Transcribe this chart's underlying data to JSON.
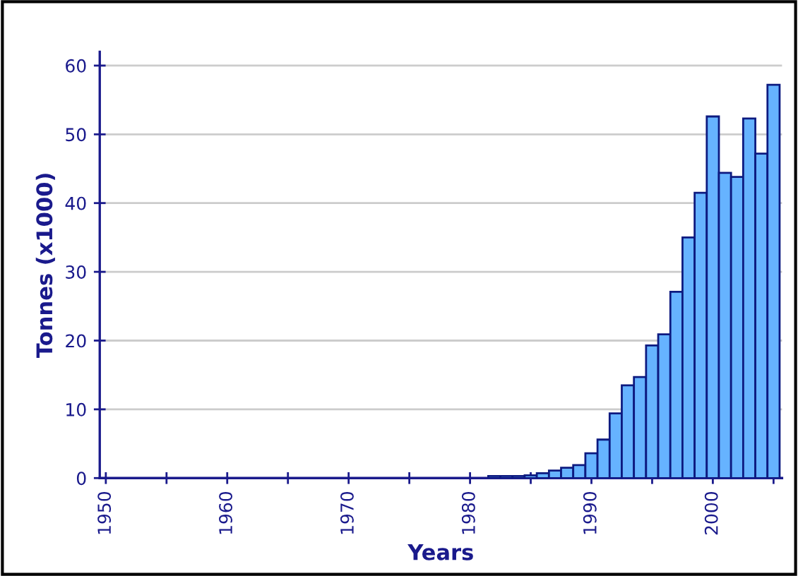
{
  "chart_data": {
    "type": "bar",
    "xlabel": "Years",
    "ylabel": "Tonnes (x1000)",
    "x": [
      1982,
      1983,
      1984,
      1985,
      1986,
      1987,
      1988,
      1989,
      1990,
      1991,
      1992,
      1993,
      1994,
      1995,
      1996,
      1997,
      1998,
      1999,
      2000,
      2001,
      2002,
      2003,
      2004,
      2005
    ],
    "series": [
      {
        "color": "#66b3ff",
        "values": [
          0.3,
          0.3,
          0.3,
          0.4,
          0.7,
          1.1,
          1.5,
          1.9,
          3.6,
          5.6,
          9.4,
          13.5,
          14.7,
          19.3,
          20.9,
          27.1,
          35.0,
          41.5,
          52.6,
          44.4,
          43.8,
          52.3,
          47.2,
          57.2
        ]
      }
    ],
    "xlim": [
      1949.5,
      2005.7
    ],
    "xticks": [
      1950,
      {
        "value": 1955,
        "label": null
      },
      1960,
      {
        "value": 1965,
        "label": null
      },
      1970,
      {
        "value": 1975,
        "label": null
      },
      1980,
      {
        "value": 1985,
        "label": null
      },
      1990,
      {
        "value": 1995,
        "label": null
      },
      2000,
      {
        "value": 2005,
        "label": null
      }
    ],
    "ylim": [
      0,
      62
    ],
    "yticks": [
      0,
      10,
      20,
      30,
      40,
      50,
      60
    ],
    "grid": "y",
    "legend": false
  }
}
